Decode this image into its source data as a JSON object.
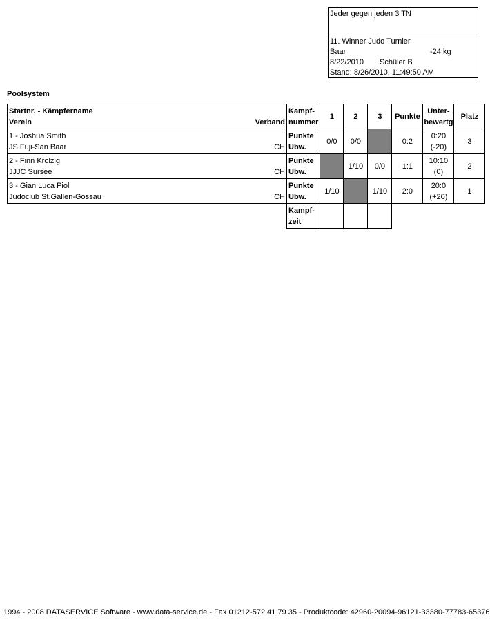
{
  "info": {
    "system": "Jeder gegen jeden 3 TN",
    "tournament": "11. Winner Judo Turnier",
    "place": "Baar",
    "weight": "-24 kg",
    "date": "8/22/2010",
    "category": "Schüler B",
    "stand": "Stand: 8/26/2010, 11:49:50 AM"
  },
  "title": "Poolsystem",
  "headers": {
    "startnr": "Startnr. - Kämpfername",
    "verein": "Verein",
    "verband": "Verband",
    "kampf1": "Kampf-",
    "kampf2": "nummer",
    "c1": "1",
    "c2": "2",
    "c3": "3",
    "punkte": "Punkte",
    "unter1": "Unter-",
    "unter2": "bewertg",
    "platz": "Platz"
  },
  "row_label": {
    "punkte": "Punkte",
    "ubw": "Ubw."
  },
  "rows": [
    {
      "name": "1 - Joshua Smith",
      "club": "JS Fuji-San Baar",
      "verband": "CH",
      "r1": "0/0",
      "r2": "0/0",
      "r3": "",
      "punkte": "0:2",
      "unter1": "0:20",
      "unter2": "(-20)",
      "platz": "3"
    },
    {
      "name": "2 - Finn Krolzig",
      "club": "JJJC Sursee",
      "verband": "CH",
      "r1": "",
      "r2": "1/10",
      "r3": "0/0",
      "punkte": "1:1",
      "unter1": "10:10",
      "unter2": "(0)",
      "platz": "2"
    },
    {
      "name": "3 - Gian Luca Piol",
      "club": "Judoclub St.Gallen-Gossau",
      "verband": "CH",
      "r1": "1/10",
      "r2": "",
      "r3": "1/10",
      "punkte": "2:0",
      "unter1": "20:0",
      "unter2": "(+20)",
      "platz": "1"
    }
  ],
  "kampfzeit": {
    "l1": "Kampf-",
    "l2": "zeit"
  },
  "footer": "1994 - 2008 DATASERVICE Software - www.data-service.de - Fax 01212-572 41 79 35 - Produktcode: 42960-20094-96121-33380-77783-65376"
}
